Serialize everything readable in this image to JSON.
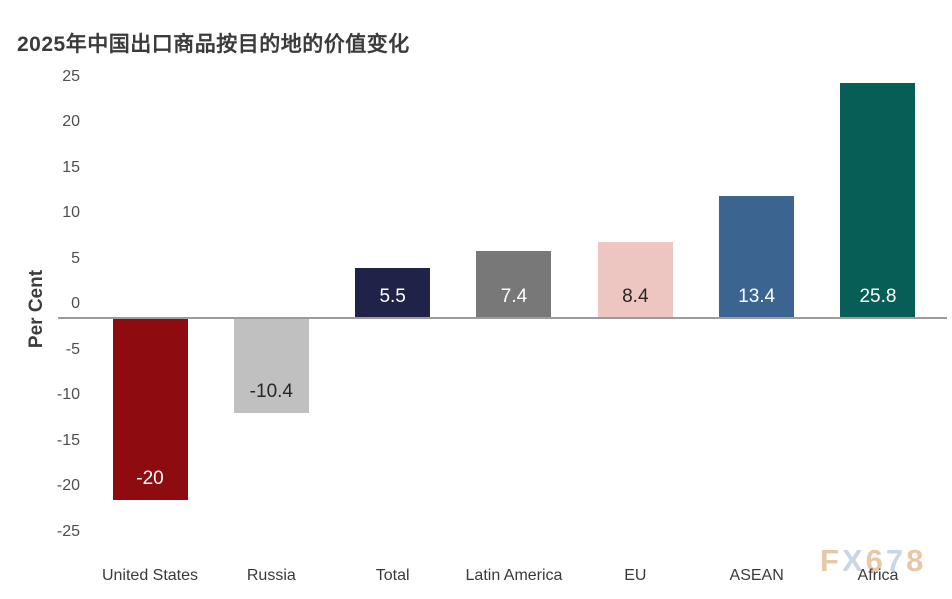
{
  "page": {
    "background": "#ffffff"
  },
  "chart_data": {
    "type": "bar",
    "title": "2025年中国出口商品按目的地的价值变化",
    "ylabel": "Per Cent",
    "xlabel": "",
    "categories": [
      "United States",
      "Russia",
      "Total",
      "Latin America",
      "EU",
      "ASEAN",
      "Africa"
    ],
    "values": [
      -20,
      -10.4,
      5.5,
      7.4,
      8.4,
      13.4,
      25.8
    ],
    "bar_labels": [
      "-20",
      "-10.4",
      "5.5",
      "7.4",
      "8.4",
      "13.4",
      "25.8"
    ],
    "bar_colors": [
      "#8e0c10",
      "#c0c0c0",
      "#1e2347",
      "#787878",
      "#edc6c2",
      "#3b6590",
      "#075e56"
    ],
    "bar_label_colors": [
      "#ffffff",
      "#262626",
      "#ffffff",
      "#ffffff",
      "#262626",
      "#ffffff",
      "#ffffff"
    ],
    "yticks": [
      25,
      20,
      15,
      10,
      5,
      0,
      -5,
      -10,
      -15,
      -20,
      -25
    ],
    "ylim": [
      -25,
      25
    ],
    "grid": false,
    "legend": null,
    "axis_line_color": "#9c9c9c",
    "tick_text_color": "#4f4f4f",
    "category_text_color": "#3a3a3a",
    "title_color": "#3b3b3b"
  },
  "watermark": {
    "text": "FX678",
    "letter_colors": [
      "#e6c5a2",
      "#c6d4e4",
      "#e6c5a2",
      "#c6d4e4",
      "#e6c5a2"
    ]
  }
}
